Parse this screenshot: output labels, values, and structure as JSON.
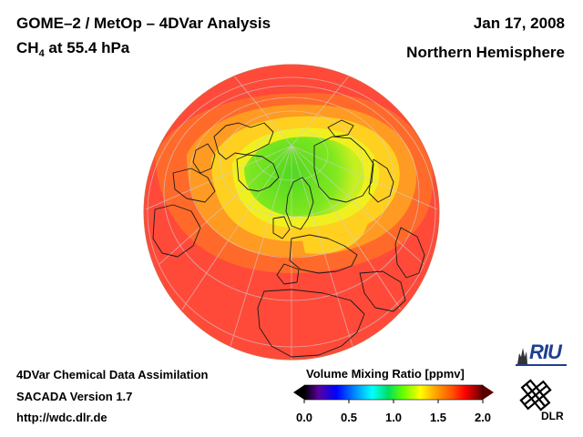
{
  "header": {
    "title_main": "GOME–2 / MetOp – 4DVar Analysis",
    "species": "CH",
    "species_subscript": "4",
    "level": "at 55.4 hPa",
    "date": "Jan 17, 2008",
    "region": "Northern Hemisphere"
  },
  "footer": {
    "line1": "4DVar Chemical Data Assimilation",
    "line2": "SACADA Version 1.7",
    "line3": "http://wdc.dlr.de"
  },
  "colorbar": {
    "title": "Volume Mixing Ratio [ppmv]",
    "ticks": [
      "0.0",
      "0.5",
      "1.0",
      "1.5",
      "2.0"
    ],
    "colors": [
      "#000000",
      "#5a00a0",
      "#0000ff",
      "#00a0ff",
      "#00ffff",
      "#00e060",
      "#60ff00",
      "#ffff00",
      "#ffa000",
      "#ff5000",
      "#ff0000",
      "#c00000",
      "#600000"
    ]
  },
  "logos": {
    "riu": "RIU",
    "dlr": "DLR"
  },
  "map": {
    "projection": "orthographic, north polar view",
    "field_colors": {
      "background": "#ff4a3a",
      "outer": "#ff5a2e",
      "mid": "#ffa020",
      "inner": "#ffe020",
      "core": "#60e020"
    }
  }
}
